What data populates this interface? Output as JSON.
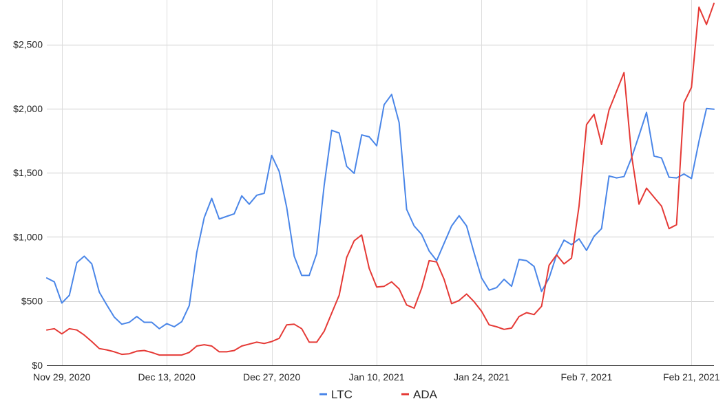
{
  "chart_data": {
    "type": "line",
    "title": "",
    "xlabel": "",
    "ylabel": "",
    "ylim": [
      0,
      2800
    ],
    "grid": true,
    "legend_position": "bottom",
    "y_ticks": [
      "$0",
      "$500",
      "$1,000",
      "$1,500",
      "$2,000",
      "$2,500"
    ],
    "y_tick_values": [
      0,
      500,
      1000,
      1500,
      2000,
      2500
    ],
    "x_ticks": [
      {
        "label": "Nov 29, 2020",
        "index": 2
      },
      {
        "label": "Dec 13, 2020",
        "index": 16
      },
      {
        "label": "Dec 27, 2020",
        "index": 30
      },
      {
        "label": "Jan 10, 2021",
        "index": 44
      },
      {
        "label": "Jan 24, 2021",
        "index": 58
      },
      {
        "label": "Feb 7, 2021",
        "index": 72
      },
      {
        "label": "Feb 21, 2021",
        "index": 86
      }
    ],
    "x_start": "Nov 27, 2020",
    "x_end": "Feb 23, 2021",
    "series": [
      {
        "name": "LTC",
        "color": "#4a86e8",
        "values": [
          680,
          650,
          485,
          545,
          800,
          850,
          790,
          570,
          470,
          375,
          320,
          335,
          380,
          335,
          335,
          285,
          325,
          300,
          340,
          465,
          880,
          1150,
          1300,
          1140,
          1160,
          1180,
          1320,
          1255,
          1325,
          1340,
          1635,
          1510,
          1230,
          850,
          700,
          700,
          870,
          1400,
          1830,
          1810,
          1550,
          1495,
          1795,
          1780,
          1710,
          2030,
          2110,
          1890,
          1215,
          1085,
          1020,
          890,
          815,
          950,
          1085,
          1165,
          1085,
          875,
          680,
          585,
          605,
          670,
          615,
          825,
          815,
          770,
          575,
          680,
          860,
          975,
          940,
          985,
          895,
          1005,
          1065,
          1475,
          1460,
          1470,
          1615,
          1790,
          1970,
          1630,
          1615,
          1465,
          1460,
          1490,
          1455,
          1745,
          2000,
          1995
        ]
      },
      {
        "name": "ADA",
        "color": "#e53935",
        "values": [
          275,
          285,
          245,
          285,
          275,
          235,
          185,
          130,
          120,
          105,
          85,
          90,
          110,
          115,
          100,
          80,
          80,
          80,
          80,
          100,
          150,
          160,
          150,
          105,
          105,
          115,
          150,
          165,
          180,
          170,
          185,
          210,
          315,
          320,
          285,
          180,
          180,
          265,
          405,
          545,
          840,
          970,
          1015,
          755,
          610,
          615,
          650,
          595,
          470,
          445,
          600,
          815,
          805,
          670,
          480,
          505,
          555,
          495,
          420,
          315,
          300,
          280,
          290,
          380,
          410,
          395,
          460,
          780,
          860,
          790,
          835,
          1240,
          1875,
          1955,
          1720,
          1990,
          2135,
          2280,
          1640,
          1255,
          1380,
          1310,
          1240,
          1065,
          1095,
          2045,
          2165,
          2790,
          2655,
          2820
        ]
      }
    ]
  }
}
